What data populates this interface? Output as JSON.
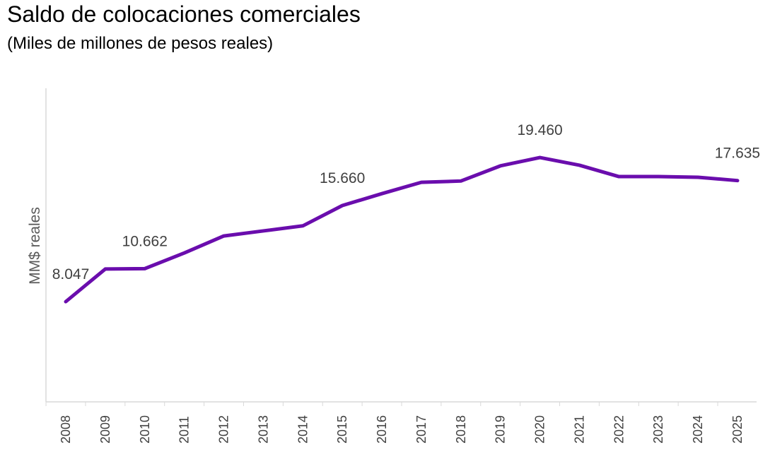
{
  "chart_data": {
    "type": "line",
    "title": "Saldo de colocaciones comerciales",
    "subtitle": "(Miles de millones de pesos reales)",
    "ylabel": "MM$ reales",
    "xlabel": "",
    "categories": [
      "2008",
      "2009",
      "2010",
      "2011",
      "2012",
      "2013",
      "2014",
      "2015",
      "2016",
      "2017",
      "2018",
      "2019",
      "2020",
      "2021",
      "2022",
      "2023",
      "2024",
      "2025"
    ],
    "series": [
      {
        "values": [
          8.047,
          10.63,
          10.662,
          11.9,
          13.25,
          13.65,
          14.05,
          15.66,
          16.6,
          17.5,
          17.6,
          18.8,
          19.46,
          18.85,
          17.95,
          17.95,
          17.9,
          17.635
        ],
        "color": "#6a0dad"
      }
    ],
    "data_labels": [
      {
        "category": "2008",
        "text": "8.047"
      },
      {
        "category": "2010",
        "text": "10.662"
      },
      {
        "category": "2015",
        "text": "15.660"
      },
      {
        "category": "2020",
        "text": "19.460"
      },
      {
        "category": "2025",
        "text": "17.635"
      }
    ],
    "ylim": [
      0,
      25
    ],
    "grid": false,
    "y_tick_labels_shown": false,
    "legend": "none"
  }
}
